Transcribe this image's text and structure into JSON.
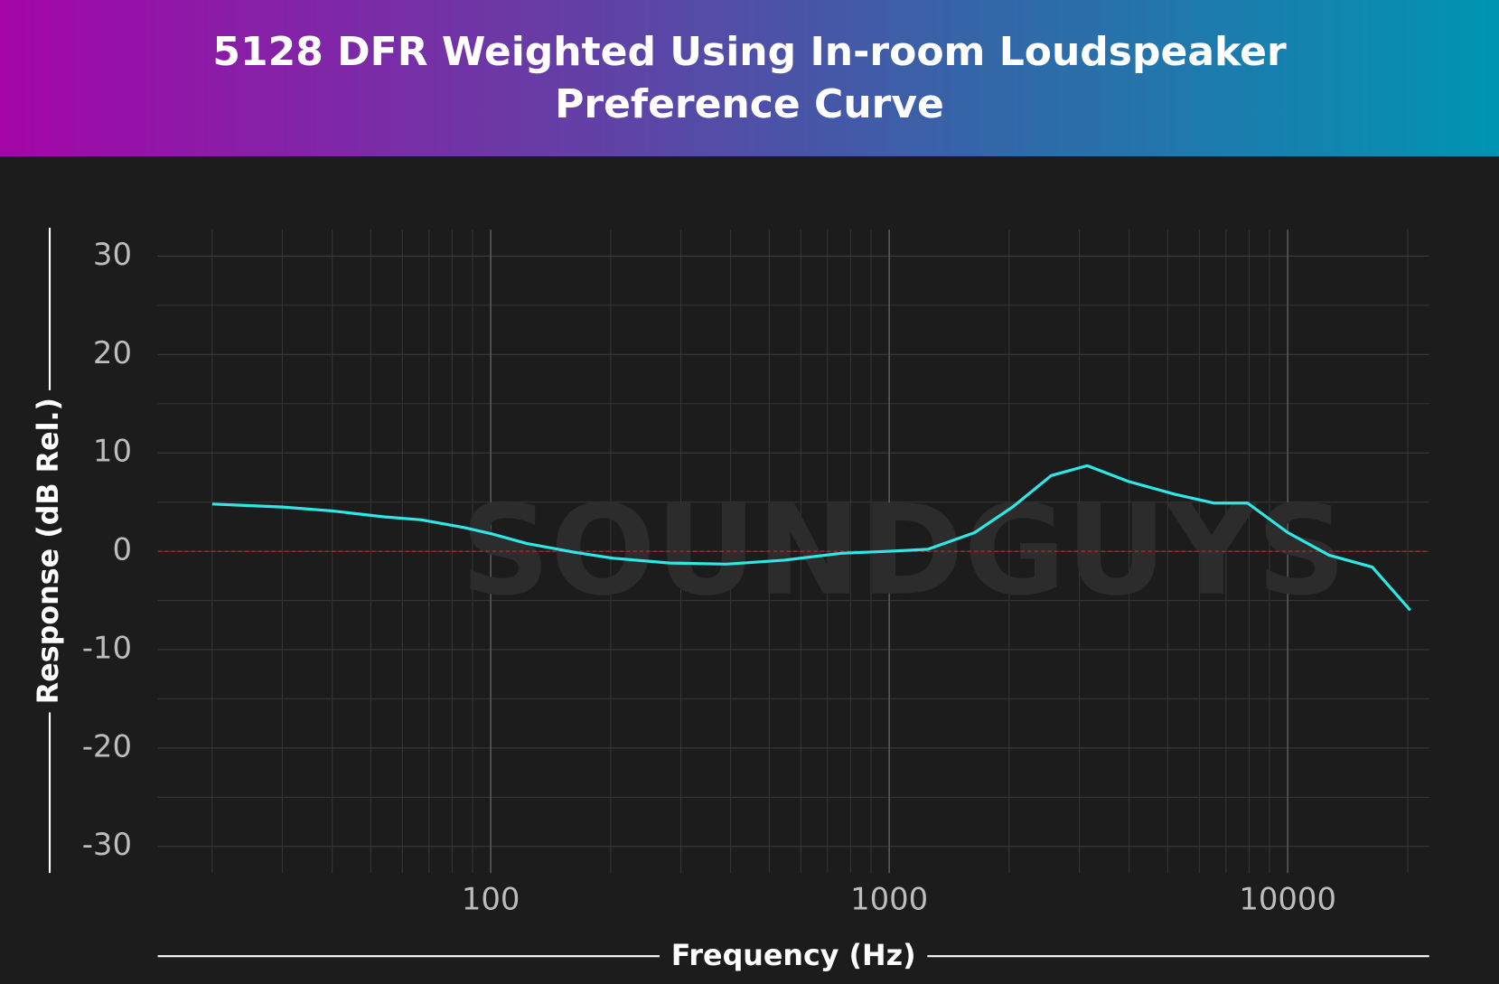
{
  "chart_data": {
    "type": "line",
    "title": "5128 DFR Weighted Using In-room Loudspeaker Preference Curve",
    "xlabel": "Frequency (Hz)",
    "ylabel": "Response (dB Rel.)",
    "watermark": "SOUNDGUYS",
    "x": [
      20,
      30,
      40,
      54,
      67,
      86,
      100,
      123,
      162,
      202,
      281,
      391,
      545,
      759,
      1000,
      1250,
      1640,
      2040,
      2550,
      3140,
      3980,
      5200,
      6540,
      7930,
      10000,
      12700,
      16300,
      20300
    ],
    "series": [
      {
        "name": "5128 DFR",
        "color": "#2ee8e8",
        "values": [
          4.8,
          4.5,
          4.1,
          3.5,
          3.2,
          2.4,
          1.8,
          0.8,
          -0.1,
          -0.7,
          -1.2,
          -1.3,
          -0.9,
          -0.2,
          0,
          0.2,
          1.9,
          4.5,
          7.7,
          8.7,
          7.1,
          5.8,
          4.9,
          4.9,
          1.9,
          -0.4,
          -1.6,
          -6.0
        ]
      }
    ],
    "xscale": "log",
    "xlim": [
      14.6,
      22650
    ],
    "xticks": [
      100,
      1000,
      10000
    ],
    "x_minor_grid": [
      20,
      30,
      40,
      50,
      60,
      70,
      80,
      90,
      200,
      300,
      400,
      500,
      600,
      700,
      800,
      900,
      2000,
      3000,
      4000,
      5000,
      6000,
      7000,
      8000,
      9000,
      20000
    ],
    "ylim": [
      -32.7,
      32.7
    ],
    "yticks": [
      -30,
      -20,
      -10,
      0,
      10,
      20,
      30
    ],
    "y_minor_grid": [
      -25,
      -15,
      -5,
      5,
      15,
      25
    ],
    "reference_line": 0,
    "reference_color": "#c0262a",
    "grid": true
  }
}
